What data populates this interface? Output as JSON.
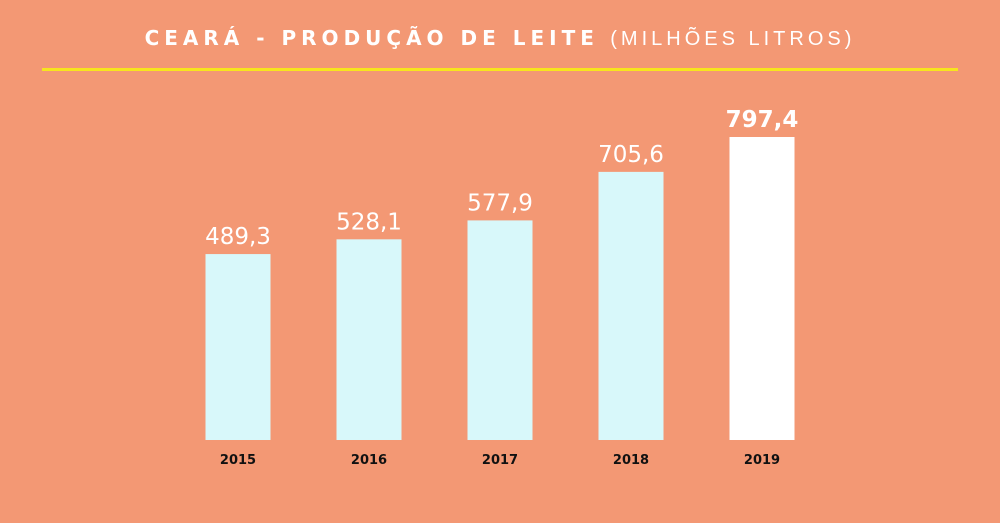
{
  "header": {
    "title_bold": "CEARÁ - PRODUÇÃO DE LEITE",
    "title_light": "(MILHÕES LITROS)"
  },
  "colors": {
    "background": "#f39874",
    "accent_rule": "#f7e51d",
    "bar": "#d8f8fa",
    "bar_highlight": "#ffffff",
    "value_label": "#ffffff",
    "year_label": "#111111"
  },
  "chart_data": {
    "type": "bar",
    "title": "CEARÁ - PRODUÇÃO DE LEITE (MILHÕES LITROS)",
    "categories": [
      "2015",
      "2016",
      "2017",
      "2018",
      "2019"
    ],
    "values": [
      489.3,
      528.1,
      577.9,
      705.6,
      797.4
    ],
    "value_labels": [
      "489,3",
      "528,1",
      "577,9",
      "705,6",
      "797,4"
    ],
    "highlight_index": 4,
    "xlabel": "",
    "ylabel": "",
    "ylim": [
      0,
      797.4
    ],
    "grid": false,
    "legend": "none"
  }
}
